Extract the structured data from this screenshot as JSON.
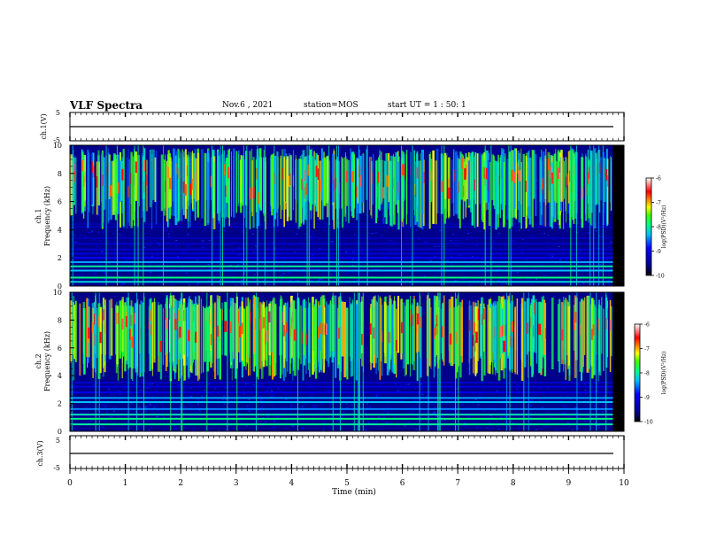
{
  "header": {
    "title": "VLF Spectra",
    "date": "Nov.6 , 2021",
    "station": "station=MOS",
    "start": "start UT = 1 : 50: 1"
  },
  "chart_data": [
    {
      "type": "line",
      "name": "ch.1 waveform",
      "ylabel": "ch.1(V)",
      "ylim": [
        -5,
        5
      ],
      "yticks": [
        "5",
        "-5"
      ],
      "x": [
        0,
        9.8
      ],
      "y": [
        0,
        0
      ]
    },
    {
      "type": "heatmap",
      "name": "ch.1 spectrogram",
      "ylabel": "Frequency (kHz)",
      "channel_label": "ch.1",
      "xlim": [
        0,
        9.8
      ],
      "ylim": [
        0,
        10
      ],
      "yticks": [
        0,
        2,
        4,
        6,
        8,
        10
      ],
      "colorbar": {
        "label": "log(PSD)(V²/Hz)",
        "range": [
          -10,
          -6
        ],
        "ticks": [
          "-6",
          "-7",
          "-8",
          "-9",
          "-10"
        ]
      },
      "background_noise_level": -9.6,
      "whistler_band_khz": [
        4,
        9.8
      ],
      "whistler_level": -7.8,
      "lines_khz": [
        {
          "f": 0.3,
          "level": -8.2
        },
        {
          "f": 0.6,
          "level": -7.9
        },
        {
          "f": 1.1,
          "level": -8.3
        },
        {
          "f": 1.4,
          "level": -8.0
        },
        {
          "f": 1.7,
          "level": -8.4
        },
        {
          "f": 2.0,
          "level": -8.9
        },
        {
          "f": 2.3,
          "level": -9.1
        },
        {
          "f": 2.6,
          "level": -9.2
        },
        {
          "f": 3.0,
          "level": -9.2
        },
        {
          "f": 3.4,
          "level": -9.3
        },
        {
          "f": 4.2,
          "level": -9.3
        },
        {
          "f": 4.4,
          "level": -9.4
        }
      ]
    },
    {
      "type": "heatmap",
      "name": "ch.2 spectrogram",
      "ylabel": "Frequency (kHz)",
      "channel_label": "ch.2",
      "xlim": [
        0,
        9.8
      ],
      "ylim": [
        0,
        10
      ],
      "yticks": [
        0,
        2,
        4,
        6,
        8,
        10
      ],
      "colorbar": {
        "label": "log(PSD)(V²/Hz)",
        "range": [
          -10,
          -6
        ],
        "ticks": [
          "-6",
          "-7",
          "-8",
          "-9",
          "-10"
        ]
      },
      "background_noise_level": -9.6,
      "whistler_band_khz": [
        3.6,
        9.8
      ],
      "whistler_level": -7.6,
      "lines_khz": [
        {
          "f": 0.5,
          "level": -8.0
        },
        {
          "f": 0.9,
          "level": -7.9
        },
        {
          "f": 1.2,
          "level": -8.1
        },
        {
          "f": 1.6,
          "level": -8.5
        },
        {
          "f": 2.1,
          "level": -8.3
        },
        {
          "f": 2.4,
          "level": -8.4
        },
        {
          "f": 2.8,
          "level": -9.0
        },
        {
          "f": 3.2,
          "level": -9.1
        },
        {
          "f": 3.5,
          "level": -9.2
        }
      ]
    },
    {
      "type": "line",
      "name": "ch.3 waveform",
      "ylabel": "ch.3(V)",
      "ylim": [
        -5,
        5
      ],
      "yticks": [
        "5",
        "-5"
      ],
      "x": [
        0,
        9.8
      ],
      "y": [
        0,
        0
      ]
    }
  ],
  "xaxis": {
    "label": "Time (min)",
    "range": [
      0,
      10
    ],
    "ticks": [
      "0",
      "1",
      "2",
      "3",
      "4",
      "5",
      "6",
      "7",
      "8",
      "9",
      "10"
    ]
  },
  "colors": {
    "background": "#000000",
    "colormap": [
      "#000090",
      "#0000ff",
      "#0080ff",
      "#00ffff",
      "#00ff40",
      "#ffff00",
      "#ff8000",
      "#ff0000",
      "#ffffff"
    ]
  }
}
